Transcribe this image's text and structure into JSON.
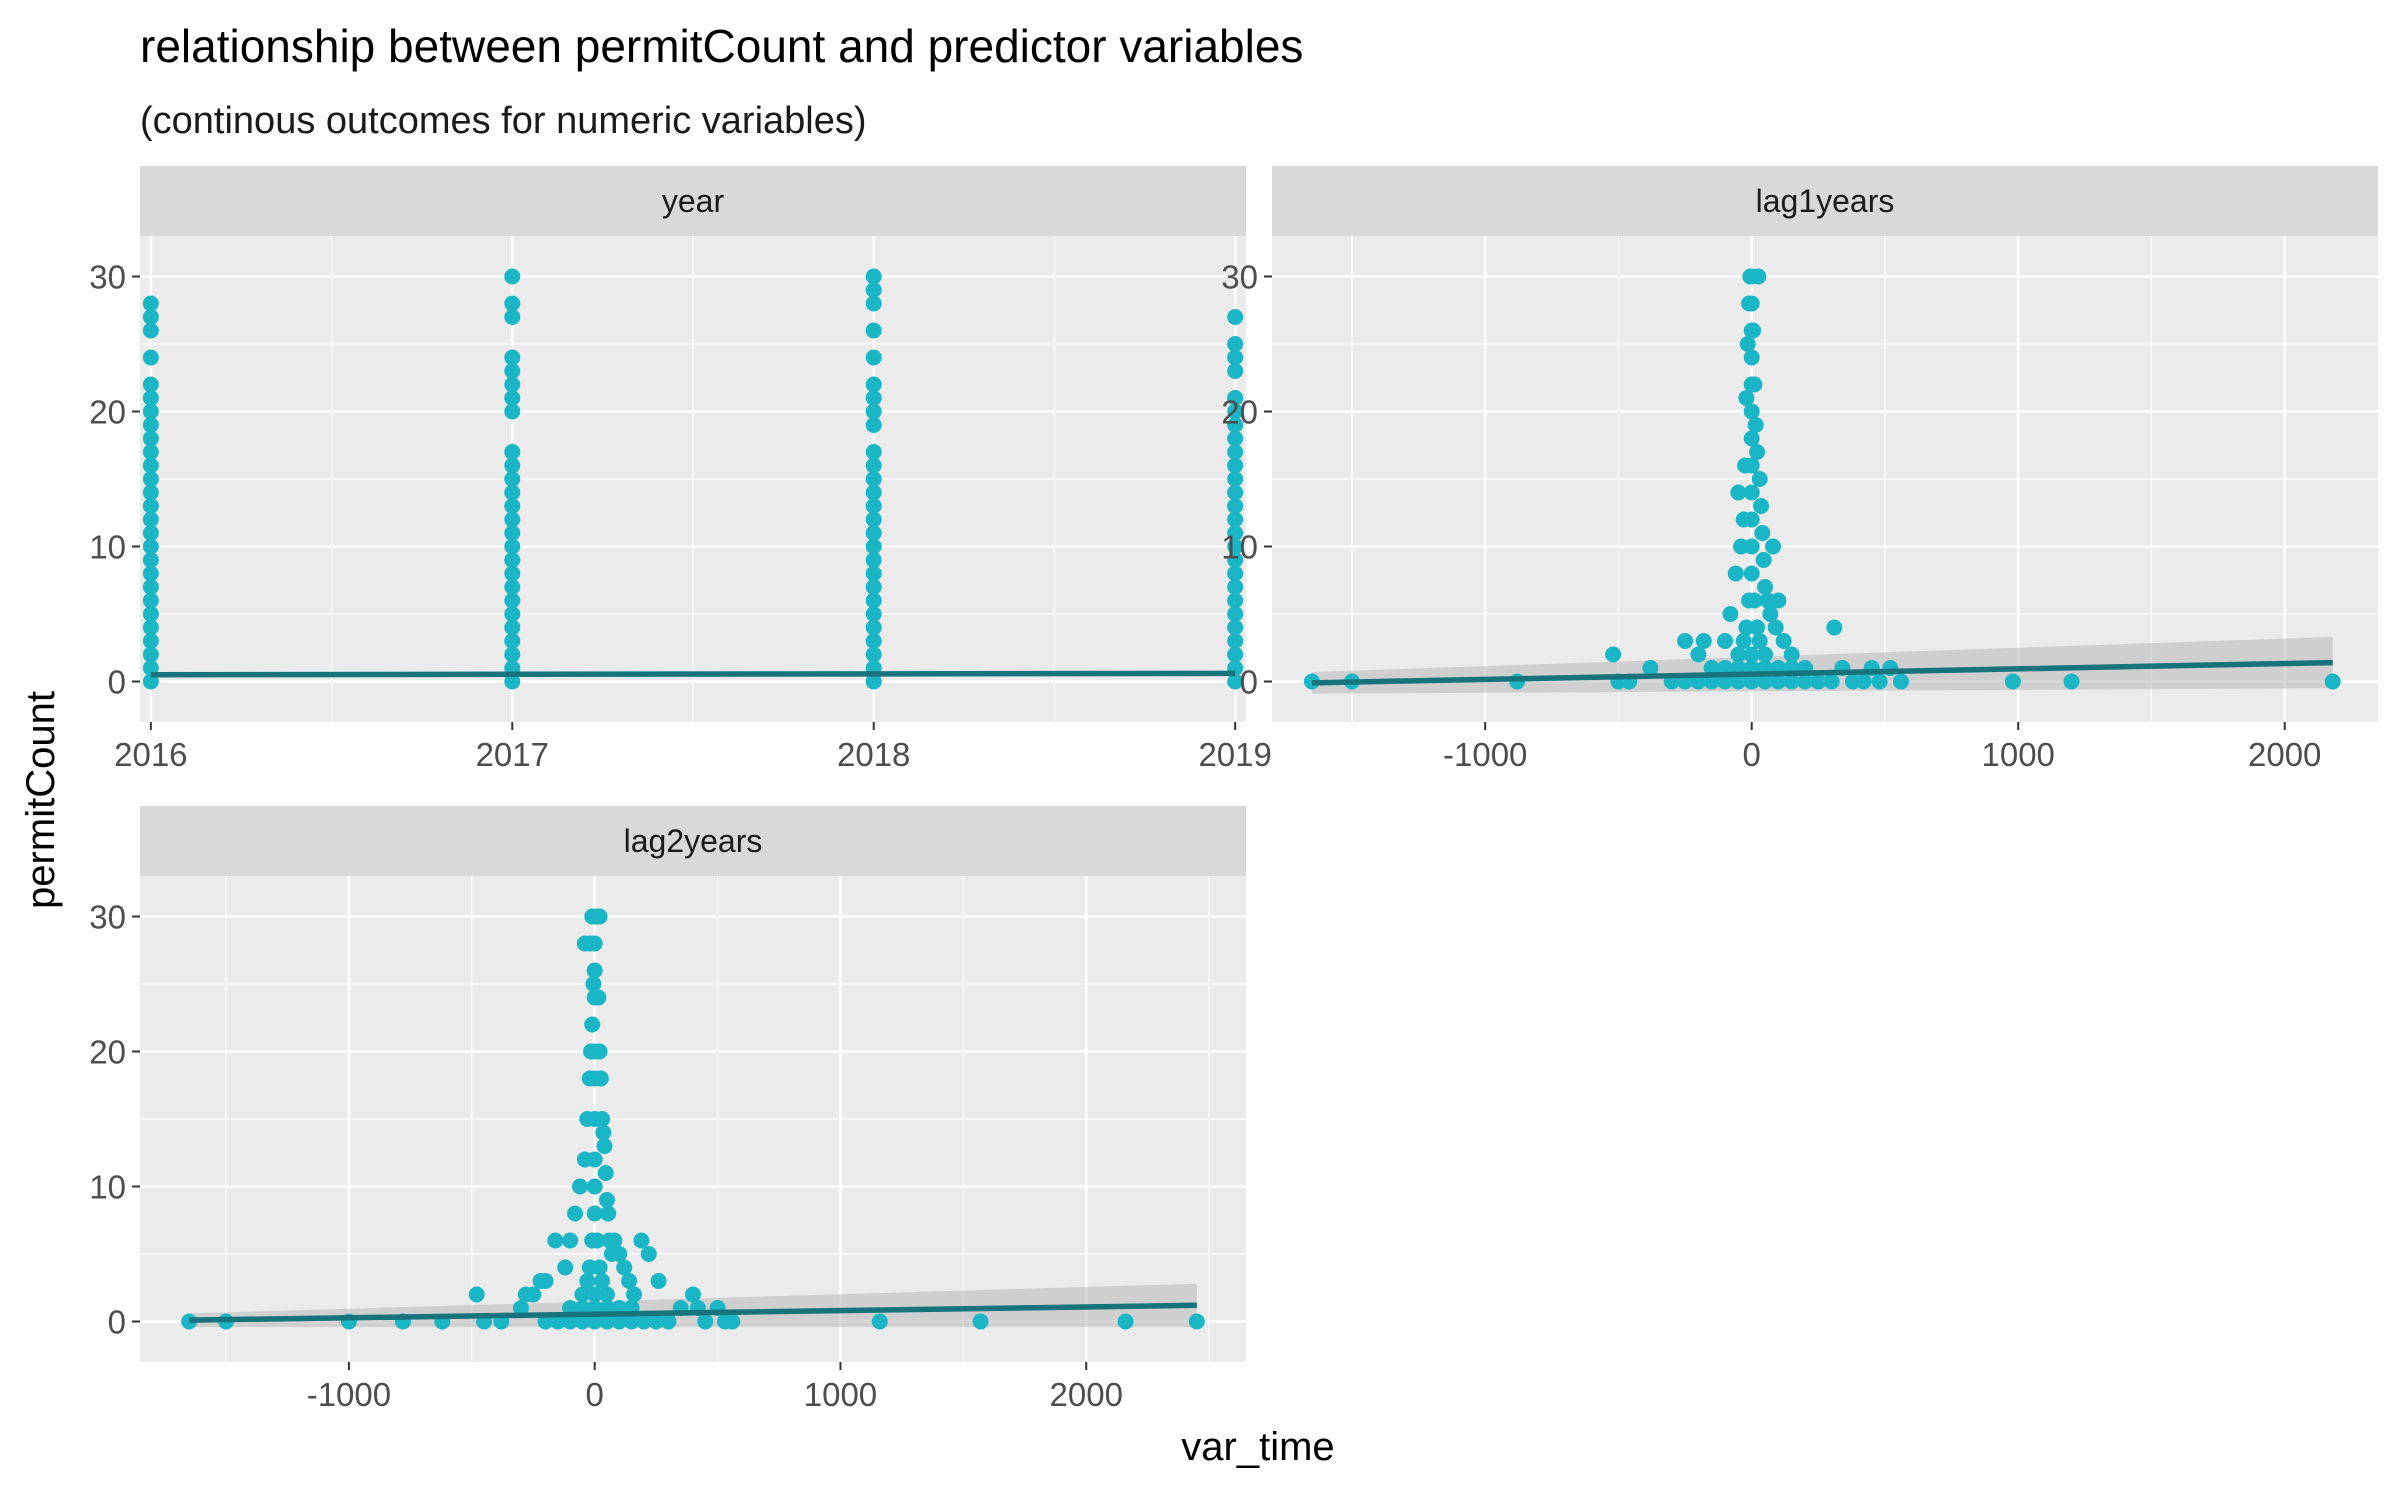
{
  "chart_data": {
    "type": "scatter",
    "title": "relationship between permitCount and predictor variables",
    "subtitle": "(continous outcomes for numeric variables)",
    "xlabel": "var_time",
    "ylabel": "permitCount",
    "colors": {
      "points": "#1ab6c6",
      "fit_line": "#17747c",
      "ribbon": "#bdbdbd",
      "panel_bg": "#ebebeb",
      "strip_bg": "#d9d9d9",
      "grid": "#ffffff"
    },
    "grid": true,
    "facets": [
      {
        "label": "year",
        "xlim": [
          2015.97,
          2019.03
        ],
        "ylim": [
          -3,
          33
        ],
        "x_ticks": [
          2016,
          2017,
          2018,
          2019
        ],
        "x_tick_labels": [
          "2016",
          "2017",
          "2018",
          "2019"
        ],
        "y_ticks": [
          0,
          10,
          20,
          30
        ],
        "y_tick_labels": [
          "0",
          "10",
          "20",
          "30"
        ],
        "fit": {
          "x": [
            2016,
            2019
          ],
          "y": [
            0.5,
            0.6
          ],
          "se": [
            0.08,
            0.08
          ]
        },
        "points": [
          [
            2016,
            0
          ],
          [
            2016,
            1
          ],
          [
            2016,
            2
          ],
          [
            2016,
            3
          ],
          [
            2016,
            4
          ],
          [
            2016,
            5
          ],
          [
            2016,
            6
          ],
          [
            2016,
            7
          ],
          [
            2016,
            8
          ],
          [
            2016,
            9
          ],
          [
            2016,
            10
          ],
          [
            2016,
            11
          ],
          [
            2016,
            12
          ],
          [
            2016,
            13
          ],
          [
            2016,
            14
          ],
          [
            2016,
            15
          ],
          [
            2016,
            16
          ],
          [
            2016,
            17
          ],
          [
            2016,
            18
          ],
          [
            2016,
            19
          ],
          [
            2016,
            20
          ],
          [
            2016,
            21
          ],
          [
            2016,
            22
          ],
          [
            2016,
            24
          ],
          [
            2016,
            26
          ],
          [
            2016,
            27
          ],
          [
            2016,
            28
          ],
          [
            2017,
            0
          ],
          [
            2017,
            1
          ],
          [
            2017,
            2
          ],
          [
            2017,
            3
          ],
          [
            2017,
            4
          ],
          [
            2017,
            5
          ],
          [
            2017,
            6
          ],
          [
            2017,
            7
          ],
          [
            2017,
            8
          ],
          [
            2017,
            9
          ],
          [
            2017,
            10
          ],
          [
            2017,
            11
          ],
          [
            2017,
            12
          ],
          [
            2017,
            13
          ],
          [
            2017,
            14
          ],
          [
            2017,
            15
          ],
          [
            2017,
            16
          ],
          [
            2017,
            17
          ],
          [
            2017,
            20
          ],
          [
            2017,
            21
          ],
          [
            2017,
            22
          ],
          [
            2017,
            23
          ],
          [
            2017,
            24
          ],
          [
            2017,
            27
          ],
          [
            2017,
            28
          ],
          [
            2017,
            30
          ],
          [
            2018,
            0
          ],
          [
            2018,
            1
          ],
          [
            2018,
            2
          ],
          [
            2018,
            3
          ],
          [
            2018,
            4
          ],
          [
            2018,
            5
          ],
          [
            2018,
            6
          ],
          [
            2018,
            7
          ],
          [
            2018,
            8
          ],
          [
            2018,
            9
          ],
          [
            2018,
            10
          ],
          [
            2018,
            11
          ],
          [
            2018,
            12
          ],
          [
            2018,
            13
          ],
          [
            2018,
            14
          ],
          [
            2018,
            15
          ],
          [
            2018,
            16
          ],
          [
            2018,
            17
          ],
          [
            2018,
            19
          ],
          [
            2018,
            20
          ],
          [
            2018,
            21
          ],
          [
            2018,
            22
          ],
          [
            2018,
            24
          ],
          [
            2018,
            26
          ],
          [
            2018,
            28
          ],
          [
            2018,
            29
          ],
          [
            2018,
            30
          ],
          [
            2019,
            0
          ],
          [
            2019,
            1
          ],
          [
            2019,
            2
          ],
          [
            2019,
            3
          ],
          [
            2019,
            4
          ],
          [
            2019,
            5
          ],
          [
            2019,
            6
          ],
          [
            2019,
            7
          ],
          [
            2019,
            8
          ],
          [
            2019,
            9
          ],
          [
            2019,
            10
          ],
          [
            2019,
            11
          ],
          [
            2019,
            12
          ],
          [
            2019,
            13
          ],
          [
            2019,
            14
          ],
          [
            2019,
            15
          ],
          [
            2019,
            16
          ],
          [
            2019,
            17
          ],
          [
            2019,
            18
          ],
          [
            2019,
            19
          ],
          [
            2019,
            20
          ],
          [
            2019,
            21
          ],
          [
            2019,
            23
          ],
          [
            2019,
            24
          ],
          [
            2019,
            25
          ],
          [
            2019,
            27
          ]
        ]
      },
      {
        "label": "lag1years",
        "xlim": [
          -1800,
          2350
        ],
        "ylim": [
          -3,
          33
        ],
        "x_ticks": [
          -1000,
          0,
          1000,
          2000
        ],
        "x_tick_labels": [
          "-1000",
          "0",
          "1000",
          "2000"
        ],
        "y_ticks": [
          0,
          10,
          20,
          30
        ],
        "y_tick_labels": [
          "0",
          "10",
          "20",
          "30"
        ],
        "fit": {
          "x": [
            -1650,
            2180
          ],
          "y": [
            -0.1,
            1.4
          ],
          "se": [
            0.8,
            1.9
          ]
        },
        "points": [
          [
            -1650,
            0
          ],
          [
            -1500,
            0
          ],
          [
            -880,
            0
          ],
          [
            -520,
            2
          ],
          [
            -500,
            0
          ],
          [
            -460,
            0
          ],
          [
            -380,
            1
          ],
          [
            -250,
            3
          ],
          [
            -200,
            2
          ],
          [
            -180,
            3
          ],
          [
            -150,
            1
          ],
          [
            -100,
            3
          ],
          [
            -80,
            5
          ],
          [
            -60,
            8
          ],
          [
            -50,
            14
          ],
          [
            -40,
            10
          ],
          [
            -30,
            12
          ],
          [
            -25,
            16
          ],
          [
            -20,
            21
          ],
          [
            -15,
            25
          ],
          [
            -10,
            28
          ],
          [
            -5,
            30
          ],
          [
            0,
            30
          ],
          [
            5,
            26
          ],
          [
            10,
            22
          ],
          [
            15,
            19
          ],
          [
            20,
            17
          ],
          [
            25,
            30
          ],
          [
            30,
            15
          ],
          [
            35,
            13
          ],
          [
            40,
            11
          ],
          [
            45,
            9
          ],
          [
            50,
            7
          ],
          [
            60,
            6
          ],
          [
            70,
            5
          ],
          [
            80,
            10
          ],
          [
            90,
            4
          ],
          [
            100,
            6
          ],
          [
            120,
            3
          ],
          [
            150,
            2
          ],
          [
            200,
            1
          ],
          [
            250,
            0
          ],
          [
            310,
            4
          ],
          [
            340,
            1
          ],
          [
            380,
            0
          ],
          [
            420,
            0
          ],
          [
            450,
            1
          ],
          [
            480,
            0
          ],
          [
            520,
            1
          ],
          [
            560,
            0
          ],
          [
            980,
            0
          ],
          [
            1200,
            0
          ],
          [
            2180,
            0
          ],
          [
            -200,
            0
          ],
          [
            -150,
            0
          ],
          [
            -100,
            0
          ],
          [
            -50,
            0
          ],
          [
            0,
            0
          ],
          [
            50,
            0
          ],
          [
            100,
            0
          ],
          [
            150,
            0
          ],
          [
            200,
            0
          ],
          [
            -100,
            1
          ],
          [
            -50,
            1
          ],
          [
            0,
            1
          ],
          [
            50,
            1
          ],
          [
            100,
            1
          ],
          [
            -50,
            2
          ],
          [
            0,
            2
          ],
          [
            50,
            2
          ],
          [
            -30,
            3
          ],
          [
            30,
            3
          ],
          [
            -20,
            4
          ],
          [
            20,
            4
          ],
          [
            -10,
            6
          ],
          [
            10,
            6
          ],
          [
            0,
            8
          ],
          [
            0,
            10
          ],
          [
            0,
            12
          ],
          [
            0,
            14
          ],
          [
            0,
            16
          ],
          [
            0,
            18
          ],
          [
            0,
            20
          ],
          [
            0,
            22
          ],
          [
            0,
            24
          ],
          [
            0,
            26
          ],
          [
            0,
            28
          ],
          [
            -150,
            1
          ],
          [
            150,
            1
          ],
          [
            -250,
            0
          ],
          [
            250,
            0
          ],
          [
            -300,
            0
          ],
          [
            300,
            0
          ]
        ]
      },
      {
        "label": "lag2years",
        "xlim": [
          -1850,
          2650
        ],
        "ylim": [
          -3,
          33
        ],
        "x_ticks": [
          -1000,
          0,
          1000,
          2000
        ],
        "x_tick_labels": [
          "-1000",
          "0",
          "1000",
          "2000"
        ],
        "y_ticks": [
          0,
          10,
          20,
          30
        ],
        "y_tick_labels": [
          "0",
          "10",
          "20",
          "30"
        ],
        "fit": {
          "x": [
            -1650,
            2450
          ],
          "y": [
            0.1,
            1.2
          ],
          "se": [
            0.5,
            1.6
          ]
        },
        "points": [
          [
            -1650,
            0
          ],
          [
            -1500,
            0
          ],
          [
            -1000,
            0
          ],
          [
            -780,
            0
          ],
          [
            -620,
            0
          ],
          [
            -480,
            2
          ],
          [
            -450,
            0
          ],
          [
            -380,
            0
          ],
          [
            -300,
            1
          ],
          [
            -280,
            2
          ],
          [
            -250,
            2
          ],
          [
            -220,
            3
          ],
          [
            -200,
            3
          ],
          [
            -160,
            6
          ],
          [
            -120,
            4
          ],
          [
            -100,
            6
          ],
          [
            -80,
            8
          ],
          [
            -60,
            10
          ],
          [
            -40,
            12
          ],
          [
            -30,
            15
          ],
          [
            -20,
            18
          ],
          [
            -15,
            20
          ],
          [
            -10,
            22
          ],
          [
            -5,
            25
          ],
          [
            0,
            28
          ],
          [
            5,
            30
          ],
          [
            10,
            30
          ],
          [
            15,
            24
          ],
          [
            20,
            20
          ],
          [
            25,
            18
          ],
          [
            30,
            15
          ],
          [
            35,
            14
          ],
          [
            40,
            13
          ],
          [
            45,
            11
          ],
          [
            50,
            9
          ],
          [
            55,
            8
          ],
          [
            60,
            6
          ],
          [
            70,
            5
          ],
          [
            80,
            6
          ],
          [
            100,
            5
          ],
          [
            120,
            4
          ],
          [
            140,
            3
          ],
          [
            160,
            2
          ],
          [
            190,
            6
          ],
          [
            220,
            5
          ],
          [
            260,
            3
          ],
          [
            300,
            0
          ],
          [
            350,
            1
          ],
          [
            400,
            2
          ],
          [
            420,
            1
          ],
          [
            450,
            0
          ],
          [
            500,
            1
          ],
          [
            530,
            0
          ],
          [
            560,
            0
          ],
          [
            1160,
            0
          ],
          [
            1570,
            0
          ],
          [
            2160,
            0
          ],
          [
            2450,
            0
          ],
          [
            -200,
            0
          ],
          [
            -150,
            0
          ],
          [
            -100,
            0
          ],
          [
            -50,
            0
          ],
          [
            0,
            0
          ],
          [
            50,
            0
          ],
          [
            100,
            0
          ],
          [
            150,
            0
          ],
          [
            200,
            0
          ],
          [
            250,
            0
          ],
          [
            -100,
            1
          ],
          [
            -50,
            1
          ],
          [
            0,
            1
          ],
          [
            50,
            1
          ],
          [
            100,
            1
          ],
          [
            150,
            1
          ],
          [
            -50,
            2
          ],
          [
            0,
            2
          ],
          [
            50,
            2
          ],
          [
            -30,
            3
          ],
          [
            30,
            3
          ],
          [
            -20,
            4
          ],
          [
            20,
            4
          ],
          [
            -10,
            6
          ],
          [
            10,
            6
          ],
          [
            0,
            8
          ],
          [
            0,
            10
          ],
          [
            0,
            12
          ],
          [
            0,
            15
          ],
          [
            0,
            18
          ],
          [
            0,
            20
          ],
          [
            0,
            24
          ],
          [
            0,
            26
          ],
          [
            -40,
            28
          ],
          [
            -20,
            28
          ],
          [
            20,
            30
          ],
          [
            -10,
            30
          ]
        ]
      }
    ]
  }
}
